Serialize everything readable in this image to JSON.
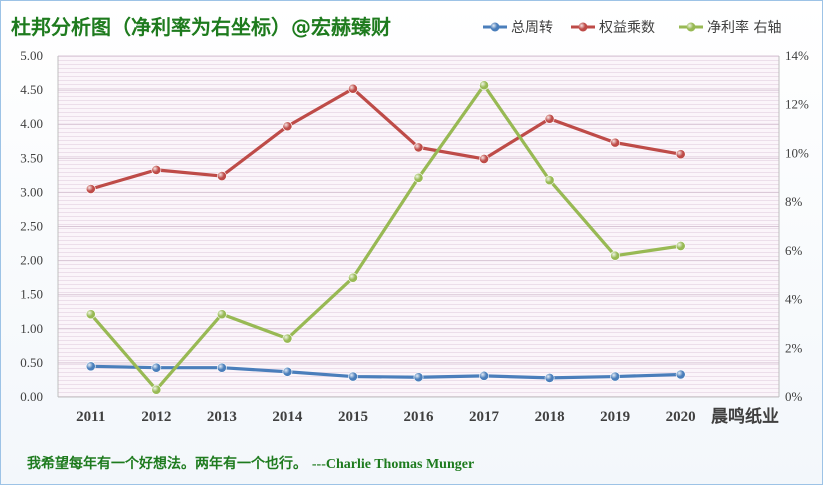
{
  "chart_data": {
    "type": "line",
    "title": "杜邦分析图（净利率为右坐标）@宏赫臻财",
    "categories": [
      "2011",
      "2012",
      "2013",
      "2014",
      "2015",
      "2016",
      "2017",
      "2018",
      "2019",
      "2020"
    ],
    "y_left": {
      "ticks": [
        "0.00",
        "0.50",
        "1.00",
        "1.50",
        "2.00",
        "2.50",
        "3.00",
        "3.50",
        "4.00",
        "4.50",
        "5.00"
      ],
      "range": [
        0,
        5
      ]
    },
    "y_right": {
      "ticks": [
        "0%",
        "2%",
        "4%",
        "6%",
        "8%",
        "10%",
        "12%",
        "14%"
      ],
      "range": [
        0,
        14
      ]
    },
    "grid": true,
    "legend_position": "top-right",
    "series": [
      {
        "name": "总周转",
        "axis": "left",
        "color": "#4a7ebb",
        "values": [
          0.45,
          0.43,
          0.43,
          0.37,
          0.3,
          0.29,
          0.31,
          0.28,
          0.3,
          0.33
        ]
      },
      {
        "name": "权益乘数",
        "axis": "left",
        "color": "#be4b48",
        "values": [
          3.05,
          3.33,
          3.24,
          3.97,
          4.52,
          3.66,
          3.49,
          4.08,
          3.73,
          3.56
        ]
      },
      {
        "name": "净利率 右轴",
        "axis": "right",
        "color": "#98b954",
        "values": [
          3.4,
          0.3,
          3.4,
          2.4,
          4.9,
          9.0,
          12.8,
          8.9,
          5.8,
          6.2
        ]
      }
    ],
    "annotation": "晨鸣纸业",
    "quote_cn": "我希望每年有一个好想法。两年有一个也行。",
    "quote_attribution": "---Charlie Thomas  Munger"
  }
}
